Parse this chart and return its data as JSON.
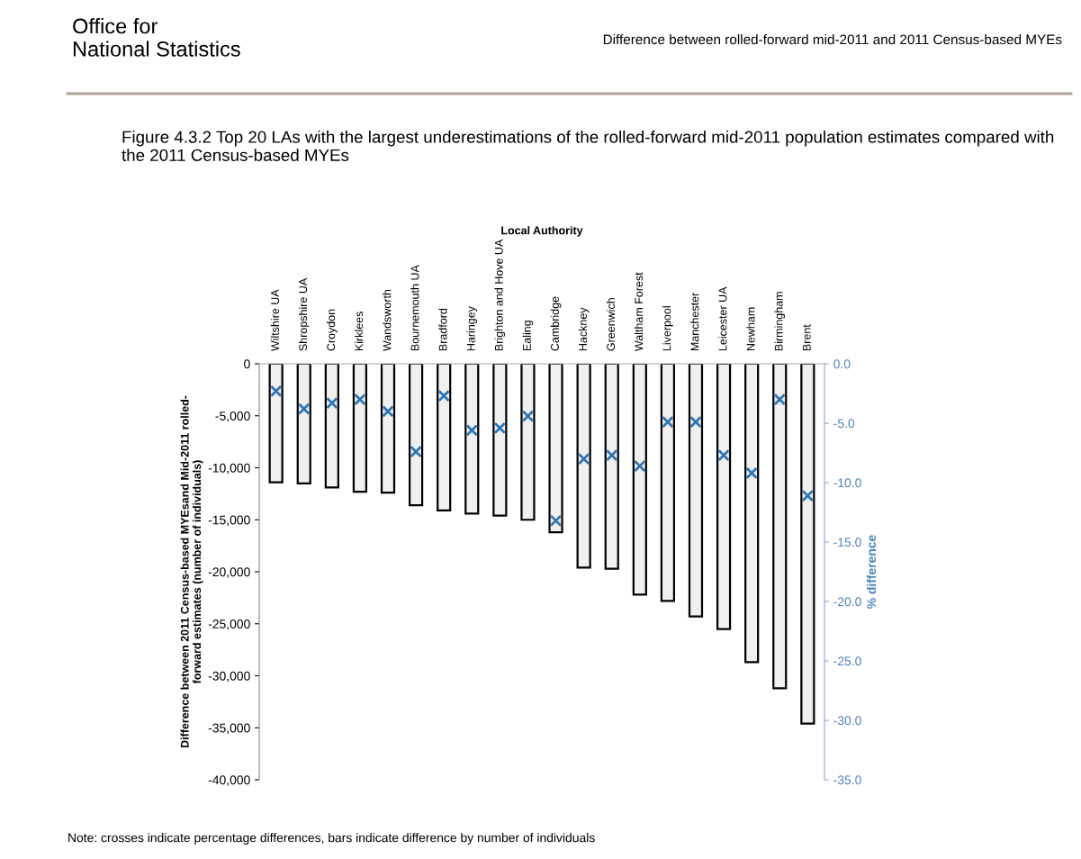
{
  "chart_data": {
    "type": "bar",
    "title": "Figure 4.3.2 Top 20 LAs with the largest underestimations of the rolled-forward mid-2011 population estimates compared with the 2011 Census-based MYEs",
    "xlabel": "Local Authority",
    "ylabel": "Difference between 2011 Census-based MYEsand Mid-2011 rolled-\nforward estimates (number of individuals)",
    "y2label": "% difference",
    "annotations": [
      "Office for\nNational Statistics",
      "Difference between rolled-forward mid-2011 and 2011 Census-based MYEs",
      "Note: crosses indicate percentage differences, bars indicate difference by number of individuals"
    ],
    "categories": [
      "Wiltshire UA",
      "Shropshire UA",
      "Croydon",
      "Kirklees",
      "Wandsworth",
      "Bournemouth UA",
      "Bradford",
      "Haringey",
      "Brighton and Hove UA",
      "Ealing",
      "Cambridge",
      "Hackney",
      "Greenwich",
      "Waltham Forest",
      "Liverpool",
      "Manchester",
      "Leicester UA",
      "Newham",
      "Birmingham",
      "Brent"
    ],
    "series": [
      {
        "color": "#f0f0f0",
        "values": [
          -11400,
          -11500,
          -11900,
          -12300,
          -12400,
          -13600,
          -14100,
          -14400,
          -14600,
          -15000,
          -16200,
          -19600,
          -19700,
          -22200,
          -22800,
          -24300,
          -25500,
          -28700,
          -31200,
          -34600
        ]
      },
      {
        "type": "scatter",
        "axis": "y2",
        "color": "#2e75b6",
        "marker": "cross",
        "values": [
          -2.3,
          -3.8,
          -3.3,
          -3.0,
          -4.0,
          -7.4,
          -2.7,
          -5.6,
          -5.4,
          -4.4,
          -13.2,
          -8.0,
          -7.7,
          -8.6,
          -4.9,
          -4.9,
          -7.7,
          -9.2,
          -3.0,
          -11.1
        ]
      }
    ],
    "ylim": [
      -40000,
      0
    ],
    "yticks": [
      0,
      {
        "value": -5000,
        "label": "-5,000"
      },
      {
        "value": -10000,
        "label": "-10,000"
      },
      {
        "value": -15000,
        "label": "-15,000"
      },
      {
        "value": -20000,
        "label": "-20,000"
      },
      {
        "value": -25000,
        "label": "-25,000"
      },
      {
        "value": -30000,
        "label": "-30,000"
      },
      {
        "value": -35000,
        "label": "-35,000"
      },
      {
        "value": -40000,
        "label": "-40,000"
      }
    ],
    "y2lim": [
      -35,
      0
    ],
    "y2ticks": [
      {
        "value": 0,
        "label": "0.0"
      },
      {
        "value": -5,
        "label": "-5.0"
      },
      {
        "value": -10,
        "label": "-10.0"
      },
      {
        "value": -15,
        "label": "-15.0"
      },
      {
        "value": -20,
        "label": "-20.0"
      },
      {
        "value": -25,
        "label": "-25.0"
      },
      {
        "value": -30,
        "label": "-30.0"
      },
      {
        "value": -35,
        "label": "-35.0"
      }
    ],
    "grid": false,
    "legend": false
  }
}
